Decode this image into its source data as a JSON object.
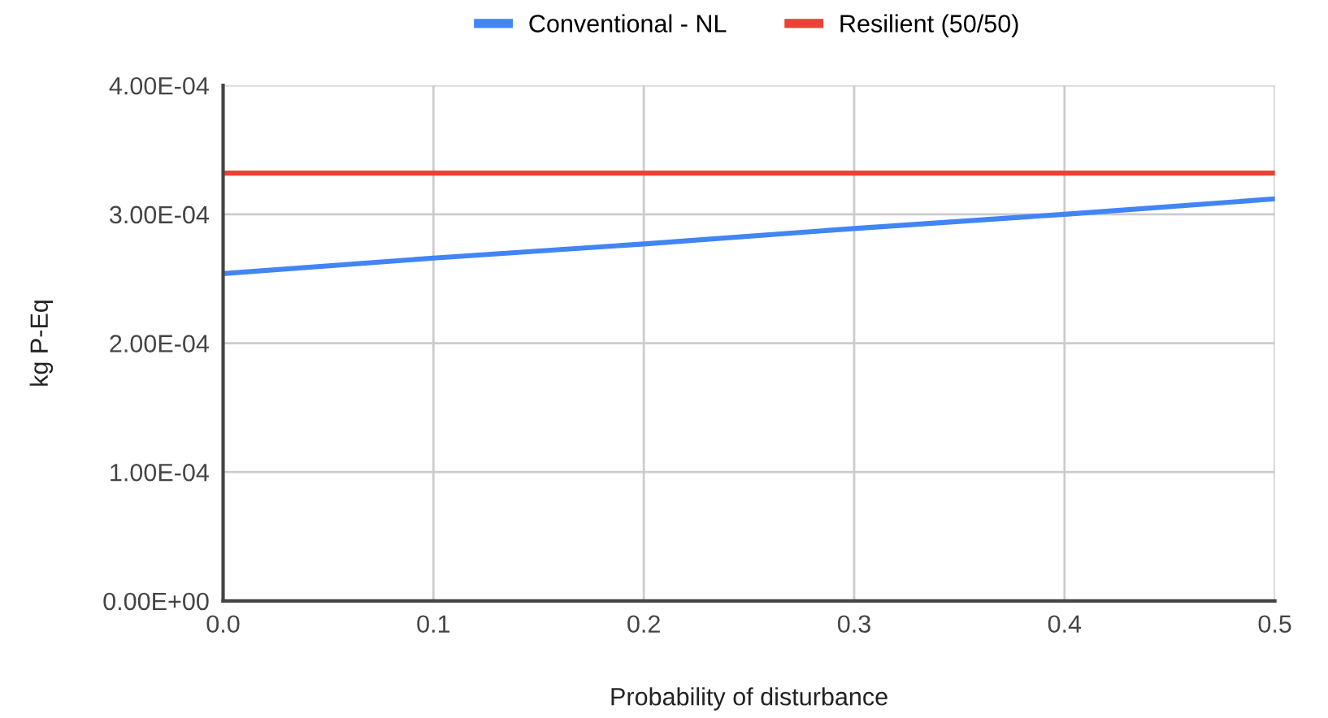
{
  "chart_data": {
    "type": "line",
    "xlabel": "Probability of disturbance",
    "ylabel": "kg P-Eq",
    "x": [
      0.0,
      0.1,
      0.2,
      0.3,
      0.4,
      0.5
    ],
    "series": [
      {
        "name": "Conventional - NL",
        "color": "#4285f4",
        "values": [
          0.000254,
          0.000266,
          0.000277,
          0.000289,
          0.0003,
          0.000312
        ]
      },
      {
        "name": "Resilient (50/50)",
        "color": "#ea4335",
        "values": [
          0.000332,
          0.000332,
          0.000332,
          0.000332,
          0.000332,
          0.000332
        ]
      }
    ],
    "xlim": [
      0.0,
      0.5
    ],
    "xticks": [
      {
        "value": 0.0,
        "label": "0.0"
      },
      0.1,
      0.2,
      0.3,
      0.4,
      0.5
    ],
    "ylim": [
      0,
      0.0004
    ],
    "yticks": [
      {
        "value": 0,
        "label": "0.00E+00"
      },
      {
        "value": 0.0001,
        "label": "1.00E-04"
      },
      {
        "value": 0.0002,
        "label": "2.00E-04"
      },
      {
        "value": 0.0003,
        "label": "3.00E-04"
      },
      {
        "value": 0.0004,
        "label": "4.00E-04"
      }
    ],
    "grid": true,
    "legend": "top",
    "marker": "none",
    "line_style": "solid"
  }
}
